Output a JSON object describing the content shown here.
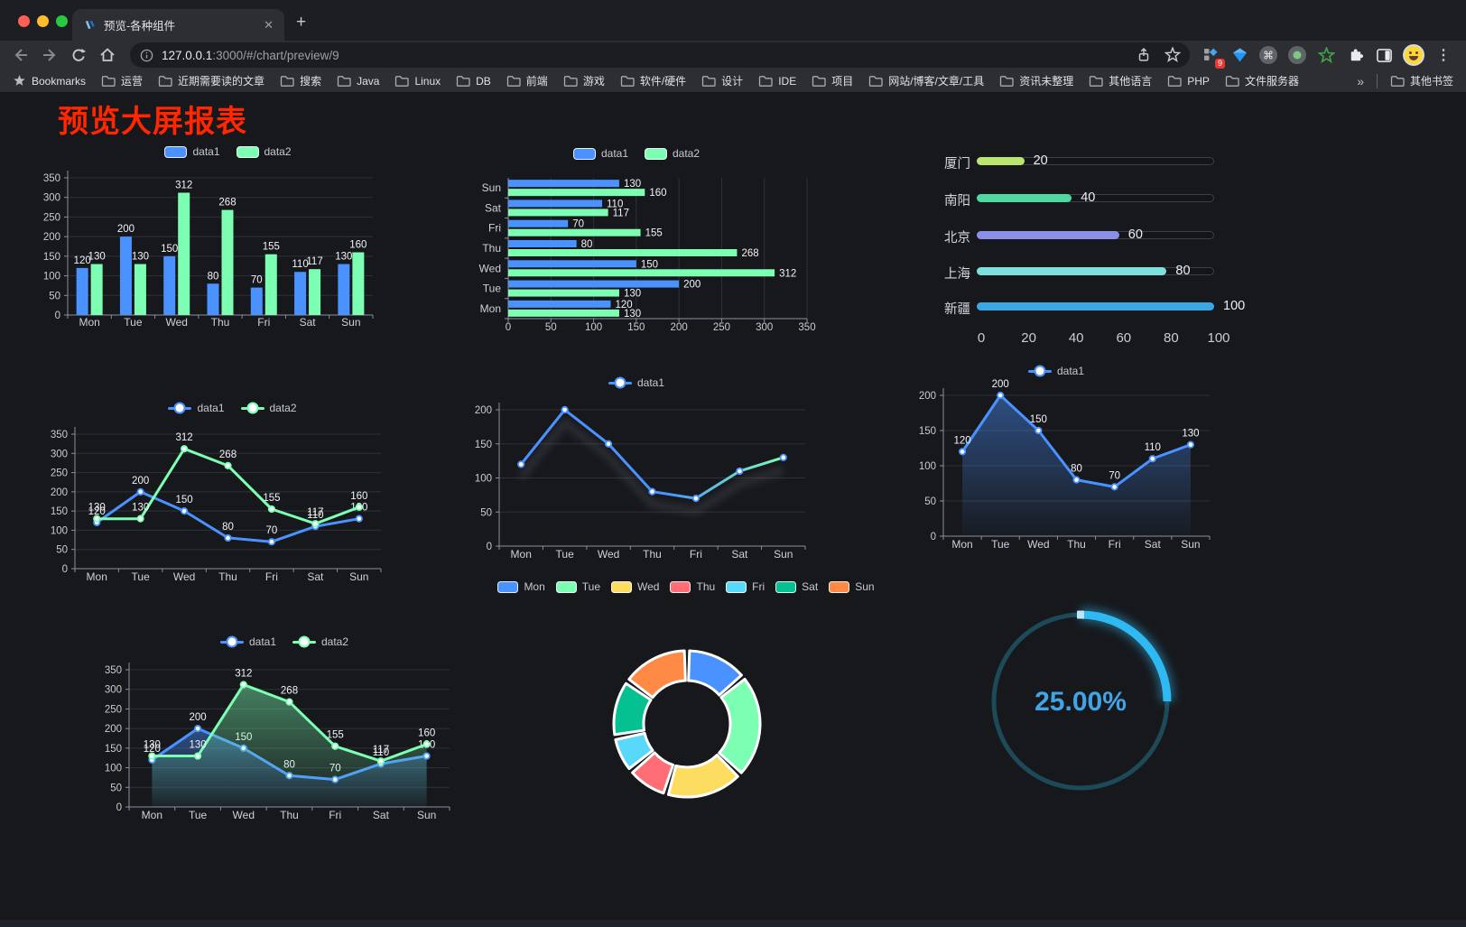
{
  "browser": {
    "tab_title": "预览-各种组件",
    "url_host": "127.0.0.1",
    "url_rest": ":3000/#/chart/preview/9",
    "extension_badge": "9",
    "bookmarks_label": "Bookmarks",
    "bookmarks": [
      "运营",
      "近期需要读的文章",
      "搜索",
      "Java",
      "Linux",
      "DB",
      "前端",
      "游戏",
      "软件/硬件",
      "设计",
      "IDE",
      "项目",
      "网站/博客/文章/工具",
      "资讯未整理",
      "其他语言",
      "PHP",
      "文件服务器"
    ],
    "bookmarks_overflow": "»",
    "other_bookmarks": "其他书签"
  },
  "page": {
    "title": "预览大屏报表"
  },
  "chart_data": [
    {
      "id": "grouped-bar",
      "type": "bar",
      "categories": [
        "Mon",
        "Tue",
        "Wed",
        "Thu",
        "Fri",
        "Sat",
        "Sun"
      ],
      "series": [
        {
          "name": "data1",
          "color": "#4992ff",
          "values": [
            120,
            200,
            150,
            80,
            70,
            110,
            130
          ]
        },
        {
          "name": "data2",
          "color": "#7cffb2",
          "values": [
            130,
            130,
            312,
            268,
            155,
            117,
            160
          ]
        }
      ],
      "ylim": [
        0,
        350
      ],
      "yticks": [
        0,
        50,
        100,
        150,
        200,
        250,
        300,
        350
      ],
      "legend_position": "top",
      "grid": true,
      "value_labels": true
    },
    {
      "id": "horizontal-bar",
      "type": "bar",
      "orientation": "horizontal",
      "categories": [
        "Mon",
        "Tue",
        "Wed",
        "Thu",
        "Fri",
        "Sat",
        "Sun"
      ],
      "series": [
        {
          "name": "data1",
          "color": "#4992ff",
          "values": [
            120,
            200,
            150,
            80,
            70,
            110,
            130
          ]
        },
        {
          "name": "data2",
          "color": "#7cffb2",
          "values": [
            130,
            130,
            312,
            268,
            155,
            117,
            160
          ]
        }
      ],
      "xlim": [
        0,
        350
      ],
      "xticks": [
        0,
        50,
        100,
        150,
        200,
        250,
        300,
        350
      ],
      "legend_position": "top",
      "grid": true,
      "value_labels": true
    },
    {
      "id": "progress-bars",
      "type": "bar",
      "orientation": "horizontal-progress",
      "items": [
        {
          "label": "厦门",
          "value": 20,
          "color": "#b9e66e"
        },
        {
          "label": "南阳",
          "value": 40,
          "color": "#4fd8a0"
        },
        {
          "label": "北京",
          "value": 60,
          "color": "#8a90ea"
        },
        {
          "label": "上海",
          "value": 80,
          "color": "#7ce0dc"
        },
        {
          "label": "新疆",
          "value": 100,
          "color": "#38a7e4"
        }
      ],
      "xlim": [
        0,
        100
      ],
      "xticks": [
        0,
        20,
        40,
        60,
        80,
        100
      ]
    },
    {
      "id": "multi-line",
      "type": "line",
      "categories": [
        "Mon",
        "Tue",
        "Wed",
        "Thu",
        "Fri",
        "Sat",
        "Sun"
      ],
      "series": [
        {
          "name": "data1",
          "color": "#4992ff",
          "values": [
            120,
            200,
            150,
            80,
            70,
            110,
            130
          ]
        },
        {
          "name": "data2",
          "color": "#7cffb2",
          "values": [
            130,
            130,
            312,
            268,
            155,
            117,
            160
          ]
        }
      ],
      "ylim": [
        0,
        350
      ],
      "yticks": [
        0,
        50,
        100,
        150,
        200,
        250,
        300,
        350
      ],
      "legend_position": "top",
      "grid": true,
      "value_labels": true
    },
    {
      "id": "gradient-line",
      "type": "line",
      "categories": [
        "Mon",
        "Tue",
        "Wed",
        "Thu",
        "Fri",
        "Sat",
        "Sun"
      ],
      "series": [
        {
          "name": "data1",
          "color": "#4992ff",
          "color_gradient": [
            "#4992ff",
            "#7cffb2"
          ],
          "values": [
            120,
            200,
            150,
            80,
            70,
            110,
            130
          ]
        }
      ],
      "ylim": [
        0,
        200
      ],
      "yticks": [
        0,
        50,
        100,
        150,
        200
      ],
      "legend_position": "top",
      "grid": true,
      "value_labels": false,
      "shadow": true
    },
    {
      "id": "single-area",
      "type": "area",
      "categories": [
        "Mon",
        "Tue",
        "Wed",
        "Thu",
        "Fri",
        "Sat",
        "Sun"
      ],
      "series": [
        {
          "name": "data1",
          "color": "#4992ff",
          "values": [
            120,
            200,
            150,
            80,
            70,
            110,
            130
          ]
        }
      ],
      "ylim": [
        0,
        200
      ],
      "yticks": [
        0,
        50,
        100,
        150,
        200
      ],
      "legend_position": "top",
      "grid": true,
      "value_labels": true
    },
    {
      "id": "multi-area",
      "type": "area",
      "categories": [
        "Mon",
        "Tue",
        "Wed",
        "Thu",
        "Fri",
        "Sat",
        "Sun"
      ],
      "series": [
        {
          "name": "data1",
          "color": "#4992ff",
          "values": [
            120,
            200,
            150,
            80,
            70,
            110,
            130
          ]
        },
        {
          "name": "data2",
          "color": "#7cffb2",
          "values": [
            130,
            130,
            312,
            268,
            155,
            117,
            160
          ]
        }
      ],
      "ylim": [
        0,
        350
      ],
      "yticks": [
        0,
        50,
        100,
        150,
        200,
        250,
        300,
        350
      ],
      "legend_position": "top",
      "grid": true,
      "value_labels": true
    },
    {
      "id": "donut",
      "type": "pie",
      "items": [
        {
          "label": "Mon",
          "value": 120,
          "color": "#4992ff"
        },
        {
          "label": "Tue",
          "value": 200,
          "color": "#7cffb2"
        },
        {
          "label": "Wed",
          "value": 150,
          "color": "#fddd60"
        },
        {
          "label": "Thu",
          "value": 80,
          "color": "#ff6e76"
        },
        {
          "label": "Fri",
          "value": 70,
          "color": "#58d9f9"
        },
        {
          "label": "Sat",
          "value": 110,
          "color": "#05c091"
        },
        {
          "label": "Sun",
          "value": 130,
          "color": "#ff8a45"
        }
      ],
      "legend_position": "top"
    },
    {
      "id": "gauge",
      "type": "gauge",
      "percent": 25,
      "label": "25.00%",
      "color": "#2fb9f2",
      "track_color": "#1d4a59",
      "text_color": "#41a4e6"
    }
  ]
}
